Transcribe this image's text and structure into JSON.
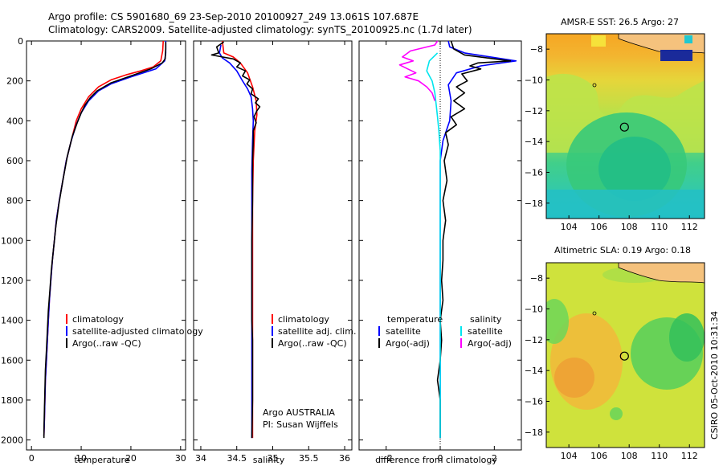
{
  "header": {
    "line1": "Argo profile: CS 5901680_69 23-Sep-2010 20100927_249 13.061S 107.687E",
    "line2": "Climatology: CARS2009. Satellite-adjusted climatology: synTS_20100925.nc (1.7d later)"
  },
  "credits": {
    "argo": "Argo AUSTRALIA",
    "pi": "PI: Susan Wijffels",
    "stamp": "CSIRO 05-Oct-2010 10:31:34"
  },
  "colors": {
    "climatology": "#ff0000",
    "satellite": "#0000ff",
    "argo": "#000000",
    "sat_salinity": "#00e5ee",
    "argo_salinity": "#ff00ff"
  },
  "chart_data": [
    {
      "type": "line",
      "id": "temperature",
      "xlabel": "temperature",
      "ylabel": "",
      "xlim": [
        -1,
        31
      ],
      "ylim": [
        2050,
        0
      ],
      "xticks": [
        0,
        10,
        20,
        30
      ],
      "yticks": [
        0,
        200,
        400,
        600,
        800,
        1000,
        1200,
        1400,
        1600,
        1800,
        2000
      ],
      "legend": [
        "climatology",
        "satellite-adjusted climatology",
        "Argo(..raw -QC)"
      ],
      "series": [
        {
          "name": "climatology",
          "color": "#ff0000",
          "points": [
            [
              26.5,
              0
            ],
            [
              26.4,
              50
            ],
            [
              26.0,
              100
            ],
            [
              24.5,
              130
            ],
            [
              22,
              150
            ],
            [
              19,
              170
            ],
            [
              16,
              195
            ],
            [
              13.5,
              230
            ],
            [
              11.5,
              280
            ],
            [
              10,
              340
            ],
            [
              9,
              400
            ],
            [
              8,
              500
            ],
            [
              7,
              600
            ],
            [
              6.3,
              700
            ],
            [
              5.6,
              800
            ],
            [
              5,
              900
            ],
            [
              4.6,
              1000
            ],
            [
              4.2,
              1100
            ],
            [
              3.9,
              1200
            ],
            [
              3.6,
              1300
            ],
            [
              3.4,
              1400
            ],
            [
              3.2,
              1500
            ],
            [
              3,
              1600
            ],
            [
              2.8,
              1700
            ],
            [
              2.7,
              1800
            ],
            [
              2.6,
              1900
            ],
            [
              2.5,
              1980
            ]
          ]
        },
        {
          "name": "satellite",
          "color": "#0000ff",
          "points": [
            [
              27.0,
              0
            ],
            [
              27.0,
              60
            ],
            [
              26.8,
              100
            ],
            [
              25.0,
              140
            ],
            [
              20,
              180
            ],
            [
              16,
              215
            ],
            [
              13.5,
              250
            ],
            [
              11.5,
              300
            ],
            [
              10,
              360
            ],
            [
              9,
              420
            ],
            [
              8,
              500
            ],
            [
              7,
              600
            ],
            [
              6.3,
              700
            ],
            [
              5.6,
              800
            ],
            [
              5,
              900
            ],
            [
              4.6,
              1000
            ],
            [
              4.2,
              1100
            ],
            [
              3.9,
              1200
            ],
            [
              3.6,
              1300
            ],
            [
              3.4,
              1400
            ],
            [
              3.2,
              1500
            ],
            [
              3,
              1600
            ],
            [
              2.8,
              1700
            ],
            [
              2.7,
              1800
            ],
            [
              2.6,
              1900
            ],
            [
              2.5,
              1980
            ]
          ]
        },
        {
          "name": "Argo",
          "color": "#000000",
          "points": [
            [
              27.0,
              5
            ],
            [
              27.0,
              40
            ],
            [
              26.9,
              90
            ],
            [
              26.3,
              110
            ],
            [
              24,
              140
            ],
            [
              20,
              175
            ],
            [
              16,
              210
            ],
            [
              13.2,
              250
            ],
            [
              11.8,
              285
            ],
            [
              10.8,
              320
            ],
            [
              10.0,
              360
            ],
            [
              9.2,
              410
            ],
            [
              8.2,
              480
            ],
            [
              7.2,
              580
            ],
            [
              6.3,
              700
            ],
            [
              5.5,
              820
            ],
            [
              4.9,
              930
            ],
            [
              4.4,
              1050
            ],
            [
              4.0,
              1150
            ],
            [
              3.7,
              1250
            ],
            [
              3.4,
              1350
            ],
            [
              3.2,
              1450
            ],
            [
              3,
              1550
            ],
            [
              2.8,
              1650
            ],
            [
              2.7,
              1750
            ],
            [
              2.6,
              1850
            ],
            [
              2.5,
              1950
            ],
            [
              2.5,
              1990
            ]
          ]
        }
      ]
    },
    {
      "type": "line",
      "id": "salinity",
      "xlabel": "salinity",
      "ylabel": "",
      "xlim": [
        33.9,
        36.1
      ],
      "ylim": [
        2050,
        0
      ],
      "xticks": [
        34,
        34.5,
        35,
        35.5,
        36
      ],
      "yticks": [],
      "legend": [
        "climatology",
        "satellite adj. clim.",
        "Argo(..raw -QC)"
      ],
      "series": [
        {
          "name": "climatology",
          "color": "#ff0000",
          "points": [
            [
              34.3,
              0
            ],
            [
              34.32,
              60
            ],
            [
              34.45,
              80
            ],
            [
              34.55,
              110
            ],
            [
              34.65,
              160
            ],
            [
              34.72,
              230
            ],
            [
              34.77,
              300
            ],
            [
              34.78,
              370
            ],
            [
              34.75,
              450
            ],
            [
              34.73,
              600
            ],
            [
              34.72,
              800
            ],
            [
              34.72,
              1000
            ],
            [
              34.72,
              1200
            ],
            [
              34.72,
              1400
            ],
            [
              34.72,
              1600
            ],
            [
              34.72,
              1800
            ],
            [
              34.72,
              1990
            ]
          ]
        },
        {
          "name": "satellite",
          "color": "#0000ff",
          "points": [
            [
              34.28,
              20
            ],
            [
              34.26,
              60
            ],
            [
              34.3,
              85
            ],
            [
              34.4,
              110
            ],
            [
              34.5,
              150
            ],
            [
              34.58,
              200
            ],
            [
              34.65,
              240
            ],
            [
              34.7,
              280
            ],
            [
              34.72,
              340
            ],
            [
              34.73,
              400
            ],
            [
              34.72,
              500
            ],
            [
              34.71,
              650
            ],
            [
              34.71,
              800
            ],
            [
              34.71,
              1000
            ],
            [
              34.71,
              1200
            ],
            [
              34.71,
              1400
            ],
            [
              34.71,
              1600
            ],
            [
              34.71,
              1800
            ],
            [
              34.71,
              1990
            ]
          ]
        },
        {
          "name": "Argo",
          "color": "#000000",
          "points": [
            [
              34.32,
              5
            ],
            [
              34.22,
              30
            ],
            [
              34.25,
              60
            ],
            [
              34.15,
              70
            ],
            [
              34.3,
              80
            ],
            [
              34.45,
              90
            ],
            [
              34.55,
              110
            ],
            [
              34.5,
              130
            ],
            [
              34.62,
              150
            ],
            [
              34.58,
              175
            ],
            [
              34.68,
              195
            ],
            [
              34.64,
              215
            ],
            [
              34.72,
              240
            ],
            [
              34.7,
              265
            ],
            [
              34.8,
              290
            ],
            [
              34.76,
              310
            ],
            [
              34.82,
              330
            ],
            [
              34.78,
              350
            ],
            [
              34.74,
              380
            ],
            [
              34.77,
              410
            ],
            [
              34.73,
              450
            ],
            [
              34.73,
              500
            ],
            [
              34.72,
              600
            ],
            [
              34.72,
              800
            ],
            [
              34.71,
              1000
            ],
            [
              34.71,
              1200
            ],
            [
              34.71,
              1400
            ],
            [
              34.72,
              1500
            ],
            [
              34.72,
              1600
            ],
            [
              34.72,
              1800
            ],
            [
              34.71,
              1990
            ]
          ]
        }
      ]
    },
    {
      "type": "line",
      "id": "difference",
      "xlabel": "difference from climatology",
      "ylabel": "",
      "xlim": [
        -3,
        3
      ],
      "ylim": [
        2050,
        0
      ],
      "xticks": [
        -2,
        0,
        2
      ],
      "yticks": [],
      "legend_temperature": {
        "title": "temperature",
        "items": [
          "satellite",
          "Argo(-adj)"
        ]
      },
      "legend_salinity": {
        "title": "salinity",
        "items": [
          "satellite",
          "Argo(-adj)"
        ]
      },
      "series": [
        {
          "name": "temperature satellite",
          "color": "#0000ff",
          "points": [
            [
              0.3,
              0
            ],
            [
              0.35,
              30
            ],
            [
              0.9,
              60
            ],
            [
              2.8,
              100
            ],
            [
              1.5,
              125
            ],
            [
              0.6,
              160
            ],
            [
              0.3,
              220
            ],
            [
              0.4,
              300
            ],
            [
              0.35,
              400
            ],
            [
              0.1,
              500
            ],
            [
              0.0,
              600
            ],
            [
              0.0,
              800
            ],
            [
              0.0,
              1000
            ],
            [
              0.0,
              1200
            ],
            [
              0.0,
              1400
            ],
            [
              0.0,
              1600
            ],
            [
              0.0,
              1800
            ],
            [
              0.0,
              1990
            ]
          ]
        },
        {
          "name": "temperature Argo",
          "color": "#000000",
          "points": [
            [
              0.4,
              0
            ],
            [
              0.5,
              40
            ],
            [
              0.9,
              70
            ],
            [
              2.6,
              100
            ],
            [
              1.4,
              110
            ],
            [
              1.1,
              125
            ],
            [
              1.5,
              140
            ],
            [
              0.8,
              165
            ],
            [
              1.0,
              200
            ],
            [
              0.6,
              230
            ],
            [
              0.9,
              260
            ],
            [
              0.5,
              300
            ],
            [
              0.9,
              340
            ],
            [
              0.4,
              380
            ],
            [
              0.6,
              420
            ],
            [
              0.2,
              460
            ],
            [
              0.3,
              520
            ],
            [
              0.15,
              600
            ],
            [
              0.25,
              700
            ],
            [
              0.1,
              800
            ],
            [
              0.2,
              900
            ],
            [
              0.1,
              1000
            ],
            [
              0.1,
              1100
            ],
            [
              0.05,
              1200
            ],
            [
              0.1,
              1300
            ],
            [
              0.0,
              1400
            ],
            [
              0.05,
              1500
            ],
            [
              0.0,
              1600
            ],
            [
              -0.1,
              1700
            ],
            [
              0.0,
              1800
            ],
            [
              0.0,
              1900
            ],
            [
              0.0,
              1990
            ]
          ]
        },
        {
          "name": "salinity satellite",
          "color": "#00e5ee",
          "points": [
            [
              -0.1,
              60
            ],
            [
              -0.4,
              100
            ],
            [
              -0.5,
              150
            ],
            [
              -0.3,
              200
            ],
            [
              -0.2,
              260
            ],
            [
              -0.15,
              320
            ],
            [
              -0.1,
              380
            ],
            [
              -0.05,
              450
            ],
            [
              0.0,
              550
            ],
            [
              0.0,
              700
            ],
            [
              0.0,
              1000
            ],
            [
              0.0,
              1400
            ],
            [
              0.0,
              1800
            ],
            [
              0.0,
              1990
            ]
          ]
        },
        {
          "name": "salinity Argo",
          "color": "#ff00ff",
          "points": [
            [
              -0.1,
              0
            ],
            [
              -0.2,
              20
            ],
            [
              -1.1,
              50
            ],
            [
              -1.4,
              80
            ],
            [
              -1.0,
              100
            ],
            [
              -1.5,
              120
            ],
            [
              -1.2,
              140
            ],
            [
              -0.9,
              160
            ],
            [
              -1.3,
              180
            ],
            [
              -0.8,
              200
            ],
            [
              -0.5,
              230
            ],
            [
              -0.3,
              260
            ],
            [
              -0.2,
              300
            ]
          ]
        }
      ]
    },
    {
      "type": "heatmap",
      "id": "sst_map",
      "title": "AMSR-E SST: 26.5 Argo: 27",
      "xlim": [
        102.5,
        113
      ],
      "ylim": [
        -19,
        -7
      ],
      "xticks": [
        104,
        106,
        108,
        110,
        112
      ],
      "yticks": [
        -8,
        -10,
        -12,
        -14,
        -16,
        -18
      ],
      "argo_position": {
        "lon": 107.687,
        "lat": -13.061
      }
    },
    {
      "type": "heatmap",
      "id": "sla_map",
      "title": "Altimetric SLA: 0.19 Argo: 0.18",
      "xlim": [
        102.5,
        113
      ],
      "ylim": [
        -19,
        -7
      ],
      "xticks": [
        104,
        106,
        108,
        110,
        112
      ],
      "yticks": [
        -8,
        -10,
        -12,
        -14,
        -16,
        -18
      ],
      "argo_position": {
        "lon": 107.687,
        "lat": -13.061
      }
    }
  ]
}
